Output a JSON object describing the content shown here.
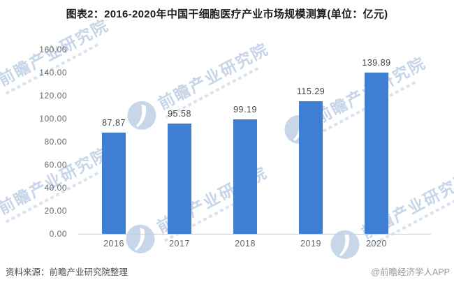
{
  "title": "图表2：2016-2020年中国干细胞医疗产业市场规模测算(单位：亿元)",
  "chart_data": {
    "type": "bar",
    "title": "图表2：2016-2020年中国干细胞医疗产业市场规模测算(单位：亿元)",
    "unit": "亿元",
    "categories": [
      "2016",
      "2017",
      "2018",
      "2019",
      "2020"
    ],
    "values": [
      87.87,
      95.58,
      99.19,
      115.29,
      139.89
    ],
    "value_labels": [
      "87.87",
      "95.58",
      "99.19",
      "115.29",
      "139.89"
    ],
    "xlabel": "",
    "ylabel": "",
    "ylim": [
      0,
      160
    ],
    "ytick_step": 20,
    "ytick_labels": [
      "0.00",
      "20.00",
      "40.00",
      "60.00",
      "80.00",
      "100.00",
      "120.00",
      "140.00",
      "160.00"
    ],
    "grid": false,
    "legend": null,
    "bar_color": "#3E7FD4"
  },
  "watermark": {
    "text": "前瞻产业研究院"
  },
  "footer": {
    "source": "资料来源：前瞻产业研究院整理",
    "credit": "@前瞻经济学人APP"
  },
  "colors": {
    "bar": "#3E7FD4",
    "title": "#1c1c1c",
    "axis_label": "#666666",
    "value_label": "#444444",
    "axis_line": "#cccccc",
    "watermark": "#c6d5e8",
    "footer_source": "#4d4d4d",
    "footer_credit": "#999999"
  }
}
